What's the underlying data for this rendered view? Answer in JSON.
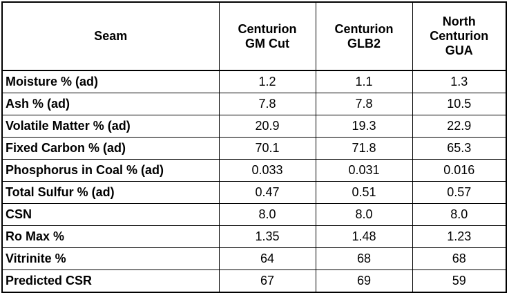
{
  "table": {
    "header": {
      "seam": "Seam",
      "col1": [
        "Centurion",
        "GM Cut"
      ],
      "col2": [
        "Centurion",
        "GLB2"
      ],
      "col3": [
        "North",
        "Centurion",
        "GUA"
      ]
    },
    "rows": [
      {
        "label": "Moisture % (ad)",
        "values": [
          "1.2",
          "1.1",
          "1.3"
        ]
      },
      {
        "label": "Ash % (ad)",
        "values": [
          "7.8",
          "7.8",
          "10.5"
        ]
      },
      {
        "label": "Volatile Matter % (ad)",
        "values": [
          "20.9",
          "19.3",
          "22.9"
        ]
      },
      {
        "label": "Fixed Carbon % (ad)",
        "values": [
          "70.1",
          "71.8",
          "65.3"
        ]
      },
      {
        "label": "Phosphorus in Coal % (ad)",
        "values": [
          "0.033",
          "0.031",
          "0.016"
        ]
      },
      {
        "label": "Total Sulfur % (ad)",
        "values": [
          "0.47",
          "0.51",
          "0.57"
        ]
      },
      {
        "label": "CSN",
        "values": [
          "8.0",
          "8.0",
          "8.0"
        ]
      },
      {
        "label": "Ro Max %",
        "values": [
          "1.35",
          "1.48",
          "1.23"
        ]
      },
      {
        "label": "Vitrinite %",
        "values": [
          "64",
          "68",
          "68"
        ]
      },
      {
        "label": "Predicted CSR",
        "values": [
          "67",
          "69",
          "59"
        ]
      }
    ]
  }
}
